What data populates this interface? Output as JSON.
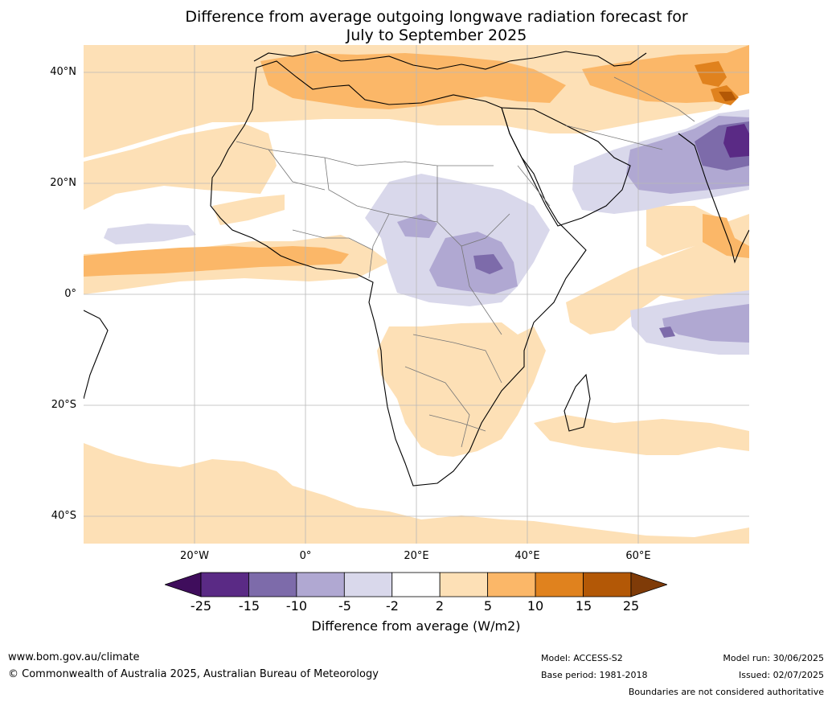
{
  "title_line1": "Difference from average outgoing longwave radiation forecast for",
  "title_line2": "July to September 2025",
  "lat_labels": [
    "40°N",
    "20°N",
    "0°",
    "20°S",
    "40°S"
  ],
  "lon_labels": [
    "20°W",
    "0°",
    "20°E",
    "40°E",
    "60°E"
  ],
  "colorbar": {
    "label": "Difference from average (W/m2)",
    "ticks": [
      "-25",
      "-15",
      "-10",
      "-5",
      "-2",
      "2",
      "5",
      "10",
      "15",
      "25"
    ],
    "colors": [
      "#3f0d5c",
      "#5a2a85",
      "#7d6baa",
      "#b0a8d2",
      "#d9d8eb",
      "#ffffff",
      "#fde0b6",
      "#fbb768",
      "#e0821e",
      "#b35806",
      "#7f3b08"
    ]
  },
  "footer": {
    "website": "www.bom.gov.au/climate",
    "copyright": "© Commonwealth of Australia 2025, Australian Bureau of Meteorology",
    "model": "Model: ACCESS-S2",
    "base_period": "Base period: 1981-2018",
    "model_run": "Model run: 30/06/2025",
    "issued": "Issued: 02/07/2025",
    "boundaries": "Boundaries are not considered authoritative"
  }
}
